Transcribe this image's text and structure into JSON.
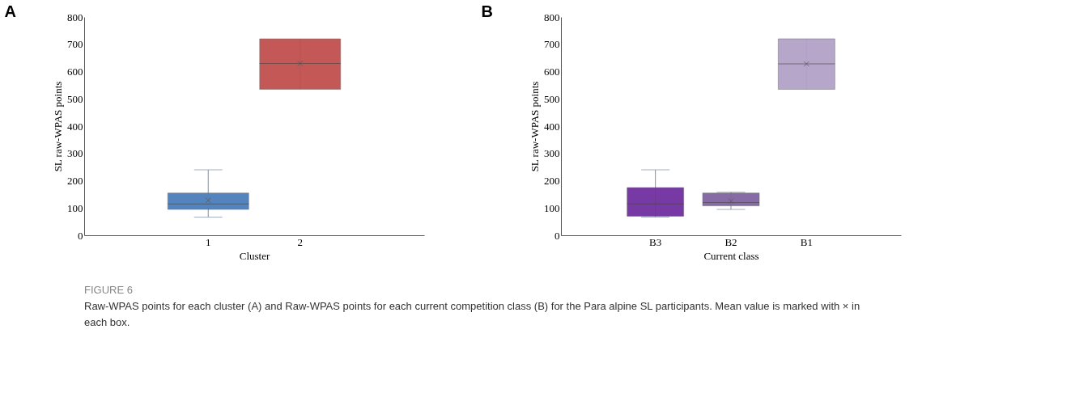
{
  "chart_data": [
    {
      "type": "box",
      "title": "A",
      "xlabel": "Cluster",
      "ylabel": "SL raw-WPAS points",
      "categories": [
        "1",
        "2"
      ],
      "colors": [
        "#4a7ebb",
        "#c0504d"
      ],
      "boxes": [
        {
          "low": 67,
          "q1": 95,
          "median": 115,
          "q3": 155,
          "high": 240,
          "mean": 128
        },
        {
          "low": 535,
          "q1": 535,
          "median": 630,
          "q3": 720,
          "high": 720,
          "mean": 630
        }
      ],
      "ylim": [
        0,
        800
      ],
      "yticks": [
        0,
        100,
        200,
        300,
        400,
        500,
        600,
        700,
        800
      ],
      "grid": false,
      "legend": false,
      "annotations": [
        "FIGURE 6",
        "Raw-WPAS points for each cluster (A) and Raw-WPAS points for each current competition class (B) for the Para alpine SL participants. Mean value is marked with × in each box."
      ]
    },
    {
      "type": "box",
      "title": "B",
      "xlabel": "Current class",
      "ylabel": "SL raw-WPAS points",
      "categories": [
        "B3",
        "B2",
        "B1"
      ],
      "colors": [
        "#7030a0",
        "#8064a2",
        "#b3a2c7"
      ],
      "boxes": [
        {
          "low": 67,
          "q1": 70,
          "median": 115,
          "q3": 175,
          "high": 240,
          "mean": 125
        },
        {
          "low": 95,
          "q1": 108,
          "median": 120,
          "q3": 155,
          "high": 158,
          "mean": 125
        },
        {
          "low": 535,
          "q1": 535,
          "median": 628,
          "q3": 720,
          "high": 720,
          "mean": 628
        }
      ],
      "ylim": [
        0,
        800
      ],
      "yticks": [
        0,
        100,
        200,
        300,
        400,
        500,
        600,
        700,
        800
      ],
      "grid": false,
      "legend": false
    }
  ]
}
